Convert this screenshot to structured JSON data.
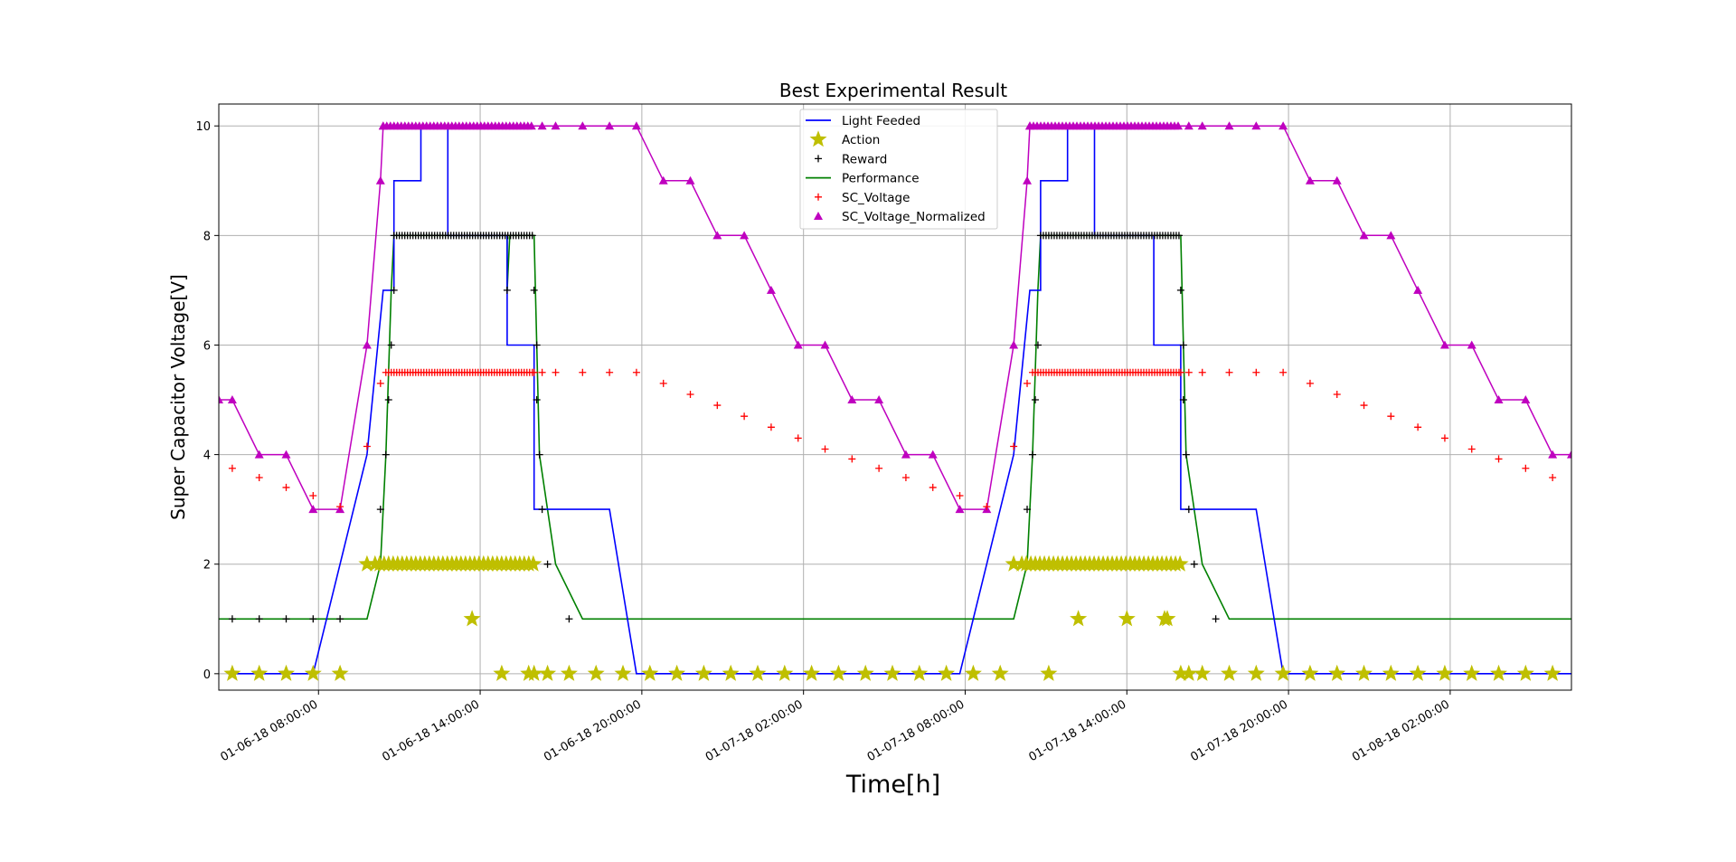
{
  "chart_data": {
    "type": "line",
    "title": "Best Experimental Result",
    "xlabel": "Time[h]",
    "ylabel": "Super Capacitor Voltage[V]",
    "xlim": [
      "01-06-18 04:18",
      "01-08-18 06:30"
    ],
    "ylim": [
      -0.3,
      10.4
    ],
    "x_ticks": [
      "01-06-18 08:00:00",
      "01-06-18 14:00:00",
      "01-06-18 20:00:00",
      "01-07-18 02:00:00",
      "01-07-18 08:00:00",
      "01-07-18 14:00:00",
      "01-07-18 20:00:00",
      "01-08-18 02:00:00"
    ],
    "y_ticks": [
      "0",
      "2",
      "4",
      "6",
      "8",
      "10"
    ],
    "grid": true,
    "legend_position": "top-center",
    "colors": {
      "light": "#0000ff",
      "action": "#bfbf00",
      "reward": "#000000",
      "performance": "#008000",
      "sc_voltage": "#ff0000",
      "sc_norm": "#bf00bf"
    },
    "series": [
      {
        "name": "Light Feeded",
        "marker": "line",
        "points": [
          [
            "01-06-18 04:48",
            0
          ],
          [
            "01-06-18 07:48",
            0
          ],
          [
            "01-06-18 09:48",
            4
          ],
          [
            "01-06-18 10:24",
            7
          ],
          [
            "01-06-18 10:48",
            7
          ],
          [
            "01-06-18 10:48",
            9
          ],
          [
            "01-06-18 11:48",
            9
          ],
          [
            "01-06-18 11:48",
            10
          ],
          [
            "01-06-18 12:48",
            10
          ],
          [
            "01-06-18 12:48",
            8
          ],
          [
            "01-06-18 15:00",
            8
          ],
          [
            "01-06-18 15:00",
            6
          ],
          [
            "01-06-18 16:00",
            6
          ],
          [
            "01-06-18 16:00",
            3
          ],
          [
            "01-06-18 18:48",
            3
          ],
          [
            "01-06-18 19:48",
            0
          ],
          [
            "01-07-18 07:48",
            0
          ],
          [
            "01-07-18 09:48",
            4
          ],
          [
            "01-07-18 10:24",
            7
          ],
          [
            "01-07-18 10:48",
            7
          ],
          [
            "01-07-18 10:48",
            9
          ],
          [
            "01-07-18 11:48",
            9
          ],
          [
            "01-07-18 11:48",
            10
          ],
          [
            "01-07-18 12:48",
            10
          ],
          [
            "01-07-18 12:48",
            8
          ],
          [
            "01-07-18 15:00",
            8
          ],
          [
            "01-07-18 15:00",
            6
          ],
          [
            "01-07-18 16:00",
            6
          ],
          [
            "01-07-18 16:00",
            3
          ],
          [
            "01-07-18 18:48",
            3
          ],
          [
            "01-07-18 19:48",
            0
          ],
          [
            "01-08-18 06:30",
            0
          ]
        ]
      },
      {
        "name": "Action",
        "marker": "star",
        "points": [
          [
            "01-06-18 04:48",
            0
          ],
          [
            "01-06-18 05:48",
            0
          ],
          [
            "01-06-18 06:48",
            0
          ],
          [
            "01-06-18 07:48",
            0
          ],
          [
            "01-06-18 08:48",
            0
          ],
          [
            "01-06-18 09:48",
            2
          ],
          [
            "01-06-18 13:42",
            1
          ],
          [
            "01-06-18 14:48",
            0
          ],
          [
            "01-06-18 15:48",
            0
          ],
          [
            "01-06-18 16:00",
            0
          ],
          [
            "01-06-18 16:30",
            0
          ],
          [
            "01-06-18 17:18",
            0
          ],
          [
            "01-06-18 18:18",
            0
          ],
          [
            "01-06-18 19:18",
            0
          ],
          [
            "01-06-18 20:18",
            0
          ],
          [
            "01-06-18 21:18",
            0
          ],
          [
            "01-06-18 22:18",
            0
          ],
          [
            "01-06-18 23:18",
            0
          ],
          [
            "01-07-18 00:18",
            0
          ],
          [
            "01-07-18 01:18",
            0
          ],
          [
            "01-07-18 02:18",
            0
          ],
          [
            "01-07-18 03:18",
            0
          ],
          [
            "01-07-18 04:18",
            0
          ],
          [
            "01-07-18 05:18",
            0
          ],
          [
            "01-07-18 06:18",
            0
          ],
          [
            "01-07-18 07:18",
            0
          ],
          [
            "01-07-18 08:18",
            0
          ],
          [
            "01-07-18 09:18",
            0
          ],
          [
            "01-07-18 09:48",
            2
          ],
          [
            "01-07-18 11:06",
            0
          ],
          [
            "01-07-18 12:12",
            1
          ],
          [
            "01-07-18 14:00",
            1
          ],
          [
            "01-07-18 15:24",
            1
          ],
          [
            "01-07-18 15:30",
            1
          ],
          [
            "01-07-18 16:00",
            0
          ],
          [
            "01-07-18 16:18",
            0
          ],
          [
            "01-07-18 16:48",
            0
          ],
          [
            "01-07-18 17:48",
            0
          ],
          [
            "01-07-18 18:48",
            0
          ],
          [
            "01-07-18 19:48",
            0
          ],
          [
            "01-07-18 20:48",
            0
          ],
          [
            "01-07-18 21:48",
            0
          ],
          [
            "01-07-18 22:48",
            0
          ],
          [
            "01-07-18 23:48",
            0
          ],
          [
            "01-08-18 00:48",
            0
          ],
          [
            "01-08-18 01:48",
            0
          ],
          [
            "01-08-18 02:48",
            0
          ],
          [
            "01-08-18 03:48",
            0
          ],
          [
            "01-08-18 04:48",
            0
          ],
          [
            "01-08-18 05:48",
            0
          ]
        ],
        "dense_bands": [
          {
            "from": "01-06-18 10:06",
            "to": "01-06-18 16:06",
            "y": 2
          },
          {
            "from": "01-07-18 10:06",
            "to": "01-07-18 16:06",
            "y": 2
          }
        ]
      },
      {
        "name": "Reward",
        "marker": "plus",
        "points": [
          [
            "01-06-18 04:48",
            1
          ],
          [
            "01-06-18 05:48",
            1
          ],
          [
            "01-06-18 06:48",
            1
          ],
          [
            "01-06-18 07:48",
            1
          ],
          [
            "01-06-18 08:48",
            1
          ],
          [
            "01-06-18 09:48",
            2
          ],
          [
            "01-06-18 10:18",
            3
          ],
          [
            "01-06-18 10:30",
            4
          ],
          [
            "01-06-18 10:36",
            5
          ],
          [
            "01-06-18 10:42",
            6
          ],
          [
            "01-06-18 10:48",
            7
          ],
          [
            "01-06-18 15:00",
            7
          ],
          [
            "01-06-18 16:00",
            7
          ],
          [
            "01-06-18 16:06",
            6
          ],
          [
            "01-06-18 16:06",
            5
          ],
          [
            "01-06-18 16:12",
            4
          ],
          [
            "01-06-18 16:18",
            3
          ],
          [
            "01-06-18 16:30",
            2
          ],
          [
            "01-06-18 17:18",
            1
          ],
          [
            "01-07-18 10:18",
            3
          ],
          [
            "01-07-18 10:30",
            4
          ],
          [
            "01-07-18 10:36",
            5
          ],
          [
            "01-07-18 10:42",
            6
          ],
          [
            "01-07-18 16:00",
            7
          ],
          [
            "01-07-18 16:06",
            6
          ],
          [
            "01-07-18 16:06",
            5
          ],
          [
            "01-07-18 16:12",
            4
          ],
          [
            "01-07-18 16:18",
            3
          ],
          [
            "01-07-18 16:30",
            2
          ],
          [
            "01-07-18 17:18",
            1
          ]
        ],
        "dense_bands": [
          {
            "from": "01-06-18 10:48",
            "to": "01-06-18 16:00",
            "y": 8
          },
          {
            "from": "01-07-18 10:48",
            "to": "01-07-18 16:00",
            "y": 8
          }
        ]
      },
      {
        "name": "Performance",
        "marker": "line",
        "points": [
          [
            "01-06-18 04:18",
            1
          ],
          [
            "01-06-18 09:48",
            1
          ],
          [
            "01-06-18 10:18",
            2
          ],
          [
            "01-06-18 10:30",
            4
          ],
          [
            "01-06-18 10:42",
            7
          ],
          [
            "01-06-18 10:48",
            8
          ],
          [
            "01-06-18 15:00",
            8
          ],
          [
            "01-06-18 15:00",
            7
          ],
          [
            "01-06-18 15:06",
            8
          ],
          [
            "01-06-18 16:00",
            8
          ],
          [
            "01-06-18 16:12",
            4
          ],
          [
            "01-06-18 16:48",
            2
          ],
          [
            "01-06-18 17:48",
            1
          ],
          [
            "01-07-18 09:48",
            1
          ],
          [
            "01-07-18 10:18",
            2
          ],
          [
            "01-07-18 10:30",
            4
          ],
          [
            "01-07-18 10:42",
            7
          ],
          [
            "01-07-18 10:48",
            8
          ],
          [
            "01-07-18 16:00",
            8
          ],
          [
            "01-07-18 16:12",
            4
          ],
          [
            "01-07-18 16:48",
            2
          ],
          [
            "01-07-18 17:48",
            1
          ],
          [
            "01-08-18 06:30",
            1
          ]
        ]
      },
      {
        "name": "SC_Voltage",
        "marker": "plus",
        "points": [
          [
            "01-06-18 04:48",
            3.75
          ],
          [
            "01-06-18 05:48",
            3.58
          ],
          [
            "01-06-18 06:48",
            3.4
          ],
          [
            "01-06-18 07:48",
            3.25
          ],
          [
            "01-06-18 08:48",
            3.05
          ],
          [
            "01-06-18 09:48",
            4.15
          ],
          [
            "01-06-18 10:18",
            5.3
          ],
          [
            "01-06-18 16:00",
            5.5
          ],
          [
            "01-06-18 16:18",
            5.5
          ],
          [
            "01-06-18 16:48",
            5.5
          ],
          [
            "01-06-18 17:48",
            5.5
          ],
          [
            "01-06-18 18:48",
            5.5
          ],
          [
            "01-06-18 19:48",
            5.5
          ],
          [
            "01-06-18 20:48",
            5.3
          ],
          [
            "01-06-18 21:48",
            5.1
          ],
          [
            "01-06-18 22:48",
            4.9
          ],
          [
            "01-06-18 23:48",
            4.7
          ],
          [
            "01-07-18 00:48",
            4.5
          ],
          [
            "01-07-18 01:48",
            4.3
          ],
          [
            "01-07-18 02:48",
            4.1
          ],
          [
            "01-07-18 03:48",
            3.92
          ],
          [
            "01-07-18 04:48",
            3.75
          ],
          [
            "01-07-18 05:48",
            3.58
          ],
          [
            "01-07-18 06:48",
            3.4
          ],
          [
            "01-07-18 07:48",
            3.25
          ],
          [
            "01-07-18 08:48",
            3.05
          ],
          [
            "01-07-18 09:48",
            4.15
          ],
          [
            "01-07-18 10:18",
            5.3
          ],
          [
            "01-07-18 16:00",
            5.5
          ],
          [
            "01-07-18 16:18",
            5.5
          ],
          [
            "01-07-18 16:48",
            5.5
          ],
          [
            "01-07-18 17:48",
            5.5
          ],
          [
            "01-07-18 18:48",
            5.5
          ],
          [
            "01-07-18 19:48",
            5.5
          ],
          [
            "01-07-18 20:48",
            5.3
          ],
          [
            "01-07-18 21:48",
            5.1
          ],
          [
            "01-07-18 22:48",
            4.9
          ],
          [
            "01-07-18 23:48",
            4.7
          ],
          [
            "01-08-18 00:48",
            4.5
          ],
          [
            "01-08-18 01:48",
            4.3
          ],
          [
            "01-08-18 02:48",
            4.1
          ],
          [
            "01-08-18 03:48",
            3.92
          ],
          [
            "01-08-18 04:48",
            3.75
          ],
          [
            "01-08-18 05:48",
            3.58
          ]
        ],
        "dense_bands": [
          {
            "from": "01-06-18 10:30",
            "to": "01-06-18 16:00",
            "y": 5.5
          },
          {
            "from": "01-07-18 10:30",
            "to": "01-07-18 16:00",
            "y": 5.5
          }
        ]
      },
      {
        "name": "SC_Voltage_Normalized",
        "marker": "triangle",
        "points": [
          [
            "01-06-18 04:18",
            5
          ],
          [
            "01-06-18 04:48",
            5
          ],
          [
            "01-06-18 05:48",
            4
          ],
          [
            "01-06-18 06:48",
            4
          ],
          [
            "01-06-18 07:48",
            3
          ],
          [
            "01-06-18 08:48",
            3
          ],
          [
            "01-06-18 09:48",
            6
          ],
          [
            "01-06-18 10:18",
            9
          ],
          [
            "01-06-18 10:24",
            10
          ],
          [
            "01-06-18 16:18",
            10
          ],
          [
            "01-06-18 16:48",
            10
          ],
          [
            "01-06-18 17:48",
            10
          ],
          [
            "01-06-18 18:48",
            10
          ],
          [
            "01-06-18 19:48",
            10
          ],
          [
            "01-06-18 20:48",
            9
          ],
          [
            "01-06-18 21:48",
            9
          ],
          [
            "01-06-18 22:48",
            8
          ],
          [
            "01-06-18 23:48",
            8
          ],
          [
            "01-07-18 00:48",
            7
          ],
          [
            "01-07-18 01:48",
            6
          ],
          [
            "01-07-18 02:48",
            6
          ],
          [
            "01-07-18 03:48",
            5
          ],
          [
            "01-07-18 04:48",
            5
          ],
          [
            "01-07-18 05:48",
            4
          ],
          [
            "01-07-18 06:48",
            4
          ],
          [
            "01-07-18 07:48",
            3
          ],
          [
            "01-07-18 08:48",
            3
          ],
          [
            "01-07-18 09:48",
            6
          ],
          [
            "01-07-18 10:18",
            9
          ],
          [
            "01-07-18 10:24",
            10
          ],
          [
            "01-07-18 16:18",
            10
          ],
          [
            "01-07-18 16:48",
            10
          ],
          [
            "01-07-18 17:48",
            10
          ],
          [
            "01-07-18 18:48",
            10
          ],
          [
            "01-07-18 19:48",
            10
          ],
          [
            "01-07-18 20:48",
            9
          ],
          [
            "01-07-18 21:48",
            9
          ],
          [
            "01-07-18 22:48",
            8
          ],
          [
            "01-07-18 23:48",
            8
          ],
          [
            "01-08-18 00:48",
            7
          ],
          [
            "01-08-18 01:48",
            6
          ],
          [
            "01-08-18 02:48",
            6
          ],
          [
            "01-08-18 03:48",
            5
          ],
          [
            "01-08-18 04:48",
            5
          ],
          [
            "01-08-18 05:48",
            4
          ],
          [
            "01-08-18 06:30",
            4
          ]
        ],
        "dense_bands": [
          {
            "from": "01-06-18 10:24",
            "to": "01-06-18 16:00",
            "y": 10
          },
          {
            "from": "01-07-18 10:24",
            "to": "01-07-18 16:00",
            "y": 10
          }
        ]
      }
    ]
  }
}
